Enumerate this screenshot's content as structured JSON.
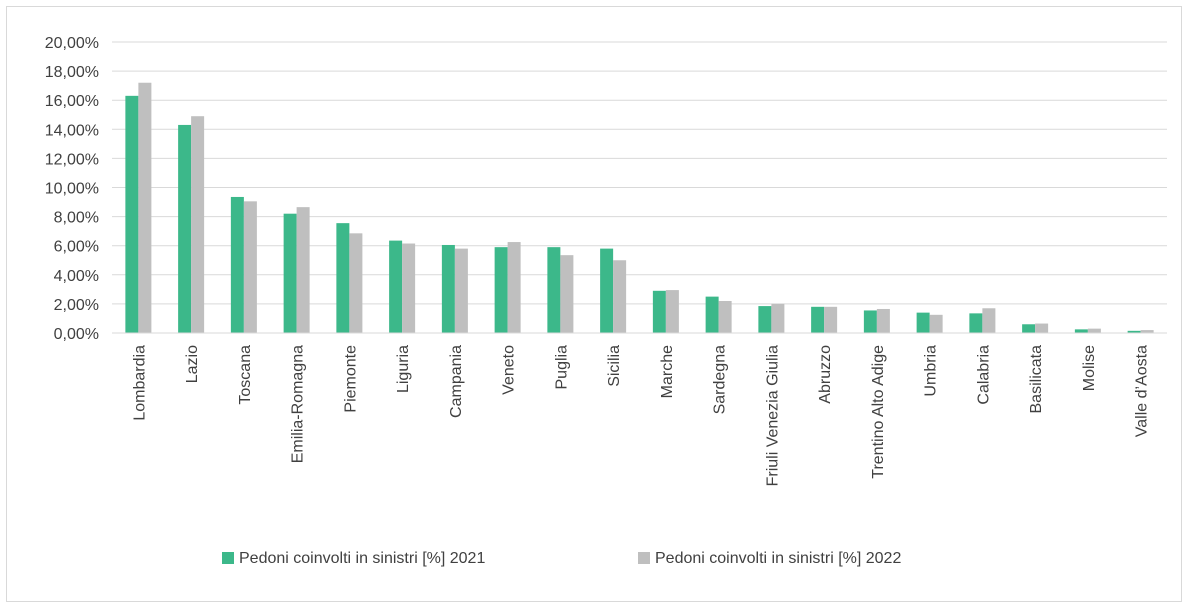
{
  "chart_data": {
    "type": "bar",
    "title": "",
    "xlabel": "",
    "ylabel": "",
    "ylim": [
      0,
      20
    ],
    "yticks": [
      "0,00%",
      "2,00%",
      "4,00%",
      "6,00%",
      "8,00%",
      "10,00%",
      "12,00%",
      "14,00%",
      "16,00%",
      "18,00%",
      "20,00%"
    ],
    "grid": true,
    "legend_position": "bottom",
    "categories": [
      "Lombardia",
      "Lazio",
      "Toscana",
      "Emilia-Romagna",
      "Piemonte",
      "Liguria",
      "Campania",
      "Veneto",
      "Puglia",
      "Sicilia",
      "Marche",
      "Sardegna",
      "Friuli Venezia Giulia",
      "Abruzzo",
      "Trentino Alto Adige",
      "Umbria",
      "Calabria",
      "Basilicata",
      "Molise",
      "Valle d’Aosta"
    ],
    "series": [
      {
        "name": "Pedoni coinvolti in sinistri [%] 2021",
        "color": "#3cb88a",
        "values": [
          16.3,
          14.3,
          9.35,
          8.2,
          7.55,
          6.35,
          6.05,
          5.9,
          5.9,
          5.8,
          2.9,
          2.5,
          1.85,
          1.8,
          1.55,
          1.4,
          1.35,
          0.6,
          0.25,
          0.15
        ]
      },
      {
        "name": "Pedoni coinvolti in sinistri [%] 2022",
        "color": "#bfbfbf",
        "values": [
          17.2,
          14.9,
          9.05,
          8.65,
          6.85,
          6.15,
          5.8,
          6.25,
          5.35,
          5.0,
          2.95,
          2.2,
          2.0,
          1.8,
          1.65,
          1.25,
          1.7,
          0.65,
          0.3,
          0.2
        ]
      }
    ]
  }
}
